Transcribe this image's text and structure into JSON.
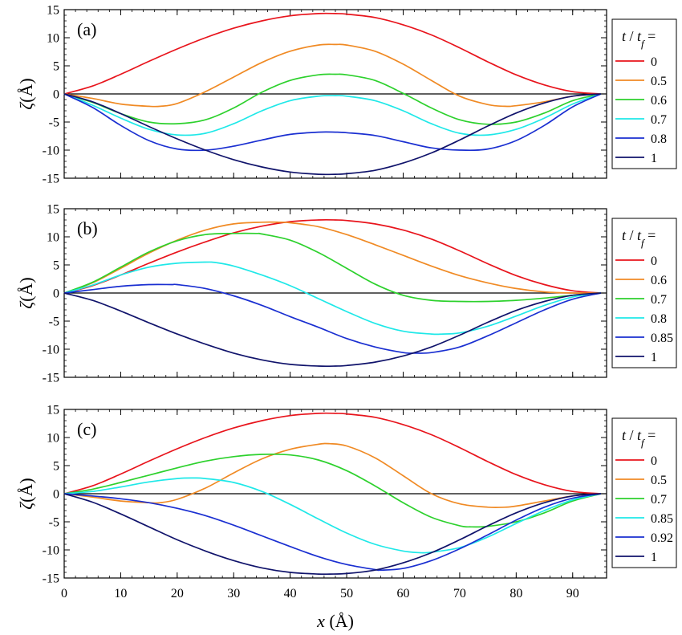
{
  "xlabel_var": "x",
  "xlabel_unit": " (Å)",
  "ylabel_var": "ζ",
  "ylabel_unit": "(Å)",
  "legend_title_t": "t",
  "legend_title_slash": " / ",
  "legend_title_tf": "t",
  "legend_title_sub": "f",
  "legend_title_eq": " =",
  "chart_data": [
    {
      "type": "line",
      "panel": "(a)",
      "xlim": [
        0,
        96
      ],
      "ylim": [
        -15,
        15
      ],
      "xticks": [
        0,
        10,
        20,
        30,
        40,
        50,
        60,
        70,
        80,
        90
      ],
      "yticks": [
        15,
        10,
        5,
        0,
        -5,
        -10,
        -15
      ],
      "xtick_labels_shown": false,
      "zero_line": true,
      "legend_position": "right",
      "series": [
        {
          "name": "0",
          "color": "#e8141c",
          "x": [
            0,
            5,
            10,
            15,
            20,
            25,
            30,
            35,
            40,
            45,
            48,
            50,
            55,
            60,
            65,
            70,
            75,
            80,
            85,
            90,
            95
          ],
          "y": [
            0,
            1.4,
            3.5,
            5.8,
            8.0,
            10.0,
            11.7,
            13.0,
            13.9,
            14.3,
            14.3,
            14.2,
            13.6,
            12.3,
            10.5,
            8.2,
            5.7,
            3.4,
            1.6,
            0.4,
            0
          ]
        },
        {
          "name": "0.5",
          "color": "#f08a24",
          "x": [
            0,
            5,
            10,
            15,
            17,
            20,
            25,
            30,
            35,
            40,
            45,
            48,
            50,
            55,
            60,
            65,
            70,
            75,
            78,
            80,
            85,
            90,
            95
          ],
          "y": [
            0,
            -0.8,
            -1.8,
            -2.2,
            -2.2,
            -1.7,
            0.4,
            3.0,
            5.6,
            7.6,
            8.7,
            8.8,
            8.7,
            7.6,
            5.3,
            2.4,
            -0.4,
            -1.9,
            -2.2,
            -2.1,
            -1.4,
            -0.4,
            0
          ]
        },
        {
          "name": "0.6",
          "color": "#2dd12d",
          "x": [
            0,
            5,
            10,
            15,
            20,
            25,
            30,
            35,
            40,
            45,
            48,
            50,
            55,
            60,
            65,
            70,
            75,
            80,
            85,
            90,
            95
          ],
          "y": [
            0,
            -1.5,
            -3.5,
            -5.0,
            -5.3,
            -4.6,
            -2.5,
            0.3,
            2.4,
            3.4,
            3.5,
            3.4,
            2.4,
            0.1,
            -2.5,
            -4.6,
            -5.4,
            -5.0,
            -3.4,
            -1.2,
            0
          ]
        },
        {
          "name": "0.7",
          "color": "#1fe8e8",
          "x": [
            0,
            5,
            10,
            15,
            20,
            25,
            30,
            35,
            40,
            45,
            48,
            50,
            55,
            60,
            65,
            70,
            75,
            80,
            85,
            90,
            95
          ],
          "y": [
            0,
            -2.0,
            -4.3,
            -6.3,
            -7.3,
            -7.0,
            -5.3,
            -3.0,
            -1.2,
            -0.4,
            -0.3,
            -0.4,
            -1.2,
            -3.0,
            -5.3,
            -7.0,
            -7.3,
            -6.3,
            -4.3,
            -1.8,
            0
          ]
        },
        {
          "name": "0.8",
          "color": "#1a2fd1",
          "x": [
            0,
            5,
            10,
            15,
            20,
            25,
            30,
            35,
            40,
            45,
            48,
            50,
            55,
            60,
            65,
            70,
            75,
            80,
            85,
            90,
            95
          ],
          "y": [
            0,
            -2.4,
            -5.6,
            -8.3,
            -9.8,
            -10.0,
            -9.3,
            -8.2,
            -7.2,
            -6.8,
            -6.8,
            -6.9,
            -7.4,
            -8.5,
            -9.6,
            -10.0,
            -9.8,
            -8.3,
            -5.6,
            -2.3,
            0
          ]
        },
        {
          "name": "1",
          "color": "#10136b",
          "x": [
            0,
            5,
            10,
            15,
            20,
            25,
            30,
            35,
            40,
            45,
            48,
            50,
            55,
            60,
            65,
            70,
            75,
            80,
            85,
            90,
            95
          ],
          "y": [
            0,
            -1.4,
            -3.5,
            -5.8,
            -8.0,
            -10.0,
            -11.7,
            -13.0,
            -13.9,
            -14.3,
            -14.3,
            -14.2,
            -13.6,
            -12.3,
            -10.5,
            -8.2,
            -5.7,
            -3.4,
            -1.6,
            -0.4,
            0
          ]
        }
      ]
    },
    {
      "type": "line",
      "panel": "(b)",
      "xlim": [
        0,
        96
      ],
      "ylim": [
        -15,
        15
      ],
      "xticks": [
        0,
        10,
        20,
        30,
        40,
        50,
        60,
        70,
        80,
        90
      ],
      "yticks": [
        15,
        10,
        5,
        0,
        -5,
        -10,
        -15
      ],
      "xtick_labels_shown": false,
      "zero_line": true,
      "legend_position": "right",
      "series": [
        {
          "name": "0",
          "color": "#e8141c",
          "x": [
            0,
            5,
            10,
            15,
            20,
            25,
            30,
            35,
            40,
            45,
            48,
            50,
            55,
            60,
            65,
            70,
            75,
            80,
            85,
            90,
            95
          ],
          "y": [
            0,
            1.3,
            3.2,
            5.3,
            7.3,
            9.1,
            10.7,
            11.9,
            12.7,
            13.0,
            13.0,
            12.9,
            12.3,
            11.2,
            9.6,
            7.5,
            5.2,
            3.1,
            1.5,
            0.4,
            0
          ]
        },
        {
          "name": "0.6",
          "color": "#f08a24",
          "x": [
            0,
            5,
            10,
            15,
            20,
            25,
            30,
            35,
            38,
            40,
            45,
            50,
            55,
            60,
            65,
            70,
            75,
            80,
            85,
            90,
            95
          ],
          "y": [
            0,
            1.8,
            4.4,
            7.1,
            9.4,
            11.2,
            12.3,
            12.6,
            12.6,
            12.5,
            11.8,
            10.4,
            8.6,
            6.7,
            4.8,
            3.1,
            1.8,
            0.8,
            0.2,
            0,
            0
          ]
        },
        {
          "name": "0.7",
          "color": "#2dd12d",
          "x": [
            0,
            5,
            10,
            15,
            20,
            25,
            30,
            34,
            35,
            40,
            45,
            50,
            55,
            60,
            65,
            70,
            75,
            80,
            85,
            90,
            95
          ],
          "y": [
            0,
            1.9,
            4.6,
            7.3,
            9.3,
            10.4,
            10.6,
            10.6,
            10.5,
            9.4,
            7.2,
            4.4,
            1.6,
            -0.4,
            -1.3,
            -1.5,
            -1.5,
            -1.3,
            -0.9,
            -0.4,
            0
          ]
        },
        {
          "name": "0.8",
          "color": "#1fe8e8",
          "x": [
            0,
            5,
            10,
            15,
            20,
            25,
            27,
            30,
            35,
            40,
            45,
            50,
            55,
            60,
            65,
            67,
            70,
            75,
            80,
            85,
            90,
            95
          ],
          "y": [
            0,
            1.4,
            3.2,
            4.6,
            5.3,
            5.5,
            5.4,
            4.8,
            3.2,
            1.3,
            -1.0,
            -3.3,
            -5.4,
            -6.8,
            -7.3,
            -7.3,
            -7.1,
            -5.9,
            -4.1,
            -2.2,
            -0.7,
            0
          ]
        },
        {
          "name": "0.85",
          "color": "#1a2fd1",
          "x": [
            0,
            5,
            10,
            15,
            19,
            20,
            25,
            30,
            35,
            40,
            45,
            50,
            55,
            60,
            62,
            65,
            70,
            75,
            80,
            85,
            90,
            95
          ],
          "y": [
            0,
            0.6,
            1.2,
            1.5,
            1.5,
            1.5,
            0.8,
            -0.5,
            -2.2,
            -4.2,
            -6.1,
            -8.1,
            -9.6,
            -10.6,
            -10.7,
            -10.6,
            -9.6,
            -7.6,
            -5.3,
            -3.0,
            -1.1,
            0
          ]
        },
        {
          "name": "1",
          "color": "#10136b",
          "x": [
            0,
            5,
            10,
            15,
            20,
            25,
            30,
            35,
            40,
            45,
            48,
            50,
            55,
            60,
            65,
            70,
            75,
            80,
            85,
            90,
            95
          ],
          "y": [
            0,
            -1.3,
            -3.2,
            -5.3,
            -7.3,
            -9.1,
            -10.7,
            -11.9,
            -12.7,
            -13.0,
            -13.0,
            -12.9,
            -12.3,
            -11.2,
            -9.6,
            -7.5,
            -5.2,
            -3.1,
            -1.5,
            -0.4,
            0
          ]
        }
      ]
    },
    {
      "type": "line",
      "panel": "(c)",
      "xlim": [
        0,
        96
      ],
      "ylim": [
        -15,
        15
      ],
      "xticks": [
        0,
        10,
        20,
        30,
        40,
        50,
        60,
        70,
        80,
        90
      ],
      "yticks": [
        15,
        10,
        5,
        0,
        -5,
        -10,
        -15
      ],
      "xtick_labels_shown": true,
      "zero_line": true,
      "legend_position": "right",
      "series": [
        {
          "name": "0",
          "color": "#e8141c",
          "x": [
            0,
            5,
            10,
            15,
            20,
            25,
            30,
            35,
            40,
            45,
            48,
            50,
            55,
            60,
            65,
            70,
            75,
            80,
            85,
            90,
            95
          ],
          "y": [
            0,
            1.4,
            3.5,
            5.8,
            8.0,
            10.0,
            11.7,
            13.0,
            13.9,
            14.3,
            14.3,
            14.2,
            13.6,
            12.3,
            10.5,
            8.2,
            5.7,
            3.4,
            1.6,
            0.4,
            0
          ]
        },
        {
          "name": "0.5",
          "color": "#f08a24",
          "x": [
            0,
            5,
            10,
            15,
            17,
            20,
            25,
            30,
            35,
            40,
            45,
            47,
            50,
            55,
            60,
            65,
            70,
            75,
            78,
            80,
            85,
            90,
            95
          ],
          "y": [
            0,
            -0.6,
            -1.3,
            -1.6,
            -1.6,
            -1.0,
            1.0,
            3.7,
            6.2,
            7.9,
            8.8,
            8.9,
            8.5,
            6.4,
            3.2,
            0,
            -1.8,
            -2.4,
            -2.4,
            -2.2,
            -1.3,
            -0.4,
            0
          ]
        },
        {
          "name": "0.7",
          "color": "#2dd12d",
          "x": [
            0,
            5,
            10,
            15,
            20,
            25,
            30,
            35,
            40,
            45,
            50,
            55,
            60,
            65,
            70,
            72,
            75,
            80,
            85,
            90,
            95
          ],
          "y": [
            0,
            0.8,
            2.0,
            3.3,
            4.6,
            5.8,
            6.6,
            7.0,
            6.9,
            6.0,
            4.1,
            1.4,
            -1.6,
            -4.2,
            -5.7,
            -5.9,
            -5.8,
            -5.0,
            -3.4,
            -1.3,
            0
          ]
        },
        {
          "name": "0.85",
          "color": "#1fe8e8",
          "x": [
            0,
            5,
            10,
            15,
            20,
            23,
            25,
            30,
            35,
            40,
            45,
            50,
            55,
            60,
            63,
            65,
            70,
            75,
            80,
            85,
            90,
            95
          ],
          "y": [
            0,
            0.4,
            1.2,
            2.1,
            2.7,
            2.8,
            2.7,
            2.0,
            0.4,
            -1.9,
            -4.5,
            -7.0,
            -9.0,
            -10.2,
            -10.5,
            -10.4,
            -9.6,
            -7.7,
            -5.3,
            -3.0,
            -1.1,
            0
          ]
        },
        {
          "name": "0.92",
          "color": "#1a2fd1",
          "x": [
            0,
            5,
            10,
            15,
            20,
            25,
            30,
            35,
            40,
            45,
            50,
            55,
            56,
            60,
            65,
            70,
            75,
            80,
            85,
            90,
            95
          ],
          "y": [
            0,
            -0.4,
            -0.9,
            -1.6,
            -2.6,
            -3.9,
            -5.6,
            -7.5,
            -9.4,
            -11.2,
            -12.6,
            -13.5,
            -13.6,
            -13.3,
            -11.9,
            -9.8,
            -7.3,
            -4.7,
            -2.4,
            -0.8,
            0
          ]
        },
        {
          "name": "1",
          "color": "#10136b",
          "x": [
            0,
            5,
            10,
            15,
            20,
            25,
            30,
            35,
            40,
            45,
            47,
            50,
            55,
            60,
            65,
            70,
            75,
            80,
            85,
            90,
            95
          ],
          "y": [
            0,
            -1.5,
            -3.6,
            -5.9,
            -8.2,
            -10.2,
            -11.9,
            -13.2,
            -14.0,
            -14.3,
            -14.3,
            -14.2,
            -13.6,
            -12.3,
            -10.5,
            -8.2,
            -5.7,
            -3.4,
            -1.6,
            -0.4,
            0
          ]
        }
      ]
    }
  ]
}
